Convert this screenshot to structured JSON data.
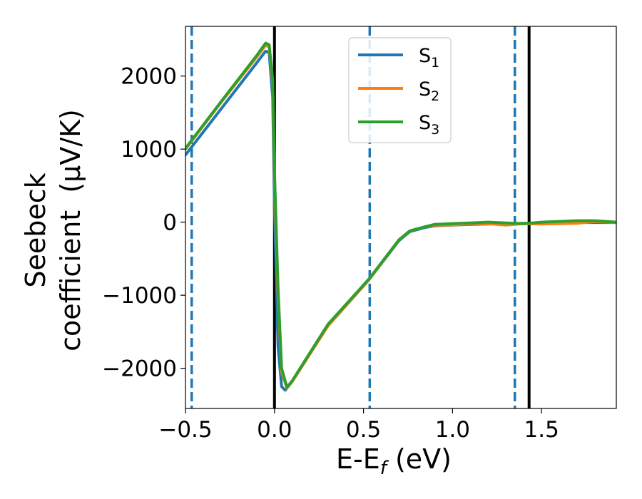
{
  "chart_data": {
    "type": "line",
    "xlabel_main": "E-E",
    "xlabel_sub": "f",
    "xlabel_unit": " (eV)",
    "ylabel_line1": "Seebeck",
    "ylabel_line2": "coefficient  (μV/K)",
    "xlim": [
      -0.5,
      1.92
    ],
    "ylim": [
      -2550,
      2680
    ],
    "x_ticks": [
      -0.5,
      0.0,
      0.5,
      1.0,
      1.5
    ],
    "x_tick_labels": [
      "−0.5",
      "0.0",
      "0.5",
      "1.0",
      "1.5"
    ],
    "y_ticks": [
      2000,
      1000,
      0,
      -1000,
      -2000
    ],
    "y_tick_labels": [
      "2000",
      "1000",
      "0",
      "−1000",
      "−2000"
    ],
    "legend_position": "top-center",
    "series": [
      {
        "name_main": "S",
        "name_sub": "1",
        "color": "#1f77b4",
        "x": [
          -0.5,
          -0.3,
          -0.1,
          -0.05,
          -0.03,
          -0.01,
          0.0,
          0.02,
          0.04,
          0.06,
          0.1,
          0.3,
          0.53,
          0.7,
          0.76,
          0.85,
          0.9,
          1.0,
          1.1,
          1.2,
          1.3,
          1.4,
          1.5,
          1.6,
          1.7,
          1.8,
          1.92
        ],
        "y": [
          920,
          1550,
          2180,
          2340,
          2320,
          1700,
          200,
          -1700,
          -2250,
          -2300,
          -2180,
          -1420,
          -790,
          -250,
          -130,
          -70,
          -50,
          -40,
          -30,
          -25,
          -20,
          -15,
          -15,
          -10,
          -5,
          -5,
          -5
        ]
      },
      {
        "name_main": "S",
        "name_sub": "2",
        "color": "#ff7f0e",
        "x": [
          -0.5,
          -0.3,
          -0.1,
          -0.05,
          -0.03,
          -0.01,
          0.0,
          0.02,
          0.04,
          0.07,
          0.1,
          0.3,
          0.53,
          0.7,
          0.76,
          0.85,
          0.9,
          1.0,
          1.1,
          1.2,
          1.3,
          1.4,
          1.5,
          1.6,
          1.7,
          1.8,
          1.92
        ],
        "y": [
          1000,
          1640,
          2260,
          2420,
          2400,
          1900,
          600,
          -1000,
          -2050,
          -2270,
          -2180,
          -1420,
          -790,
          -240,
          -120,
          -60,
          -40,
          -40,
          -20,
          -20,
          -40,
          -20,
          -25,
          -20,
          -15,
          10,
          -5
        ]
      },
      {
        "name_main": "S",
        "name_sub": "3",
        "color": "#2ca02c",
        "x": [
          -0.5,
          -0.3,
          -0.1,
          -0.05,
          -0.03,
          -0.01,
          0.0,
          0.02,
          0.04,
          0.07,
          0.1,
          0.3,
          0.53,
          0.7,
          0.76,
          0.85,
          0.9,
          1.0,
          1.1,
          1.2,
          1.3,
          1.4,
          1.5,
          1.6,
          1.7,
          1.8,
          1.92
        ],
        "y": [
          1010,
          1650,
          2280,
          2450,
          2430,
          1950,
          700,
          -900,
          -2000,
          -2260,
          -2170,
          -1400,
          -780,
          -240,
          -120,
          -60,
          -30,
          -20,
          -10,
          0,
          -10,
          -20,
          0,
          10,
          20,
          20,
          0
        ]
      }
    ],
    "vlines": [
      {
        "x": -0.465,
        "style": "dashed",
        "color": "#1f77b4"
      },
      {
        "x": 0.0,
        "style": "solid",
        "color": "#000000"
      },
      {
        "x": 0.535,
        "style": "dashed",
        "color": "#1f77b4"
      },
      {
        "x": 1.35,
        "style": "dashed",
        "color": "#1f77b4"
      },
      {
        "x": 1.43,
        "style": "solid",
        "color": "#000000"
      }
    ]
  }
}
